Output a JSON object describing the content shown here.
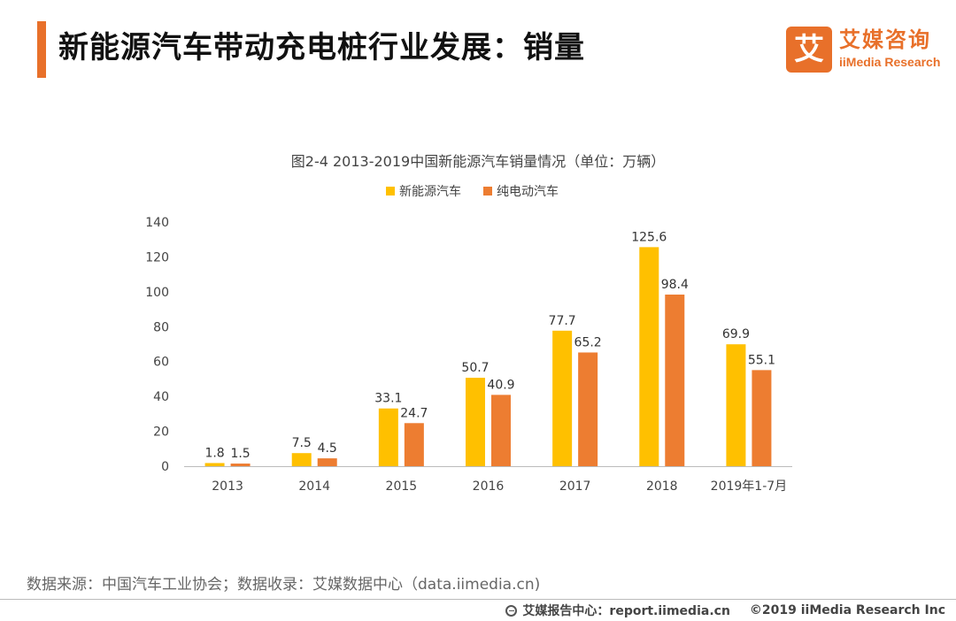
{
  "header": {
    "title": "新能源汽车带动充电桩行业发展：销量"
  },
  "logo": {
    "mark": "艾",
    "cn": "艾媒咨询",
    "en": "iiMedia Research"
  },
  "chart_data": {
    "type": "bar",
    "title": "图2-4 2013-2019中国新能源汽车销量情况（单位：万辆）",
    "categories": [
      "2013",
      "2014",
      "2015",
      "2016",
      "2017",
      "2018",
      "2019年1-7月"
    ],
    "series": [
      {
        "name": "新能源汽车",
        "color": "#FFC000",
        "values": [
          1.8,
          7.5,
          33.1,
          50.7,
          77.7,
          125.6,
          69.9
        ]
      },
      {
        "name": "纯电动汽车",
        "color": "#ED7D31",
        "values": [
          1.5,
          4.5,
          24.7,
          40.9,
          65.2,
          98.4,
          55.1
        ]
      }
    ],
    "ylim": [
      0,
      140
    ],
    "yticks": [
      0,
      20,
      40,
      60,
      80,
      100,
      120,
      140
    ],
    "grid": false,
    "legend": "top-center",
    "xlabel": "",
    "ylabel": ""
  },
  "source": "数据来源：中国汽车工业协会；数据收录：艾媒数据中心（data.iimedia.cn)",
  "footer": {
    "site": "艾媒报告中心：report.iimedia.cn",
    "copyright": "©2019  iiMedia Research  Inc"
  }
}
